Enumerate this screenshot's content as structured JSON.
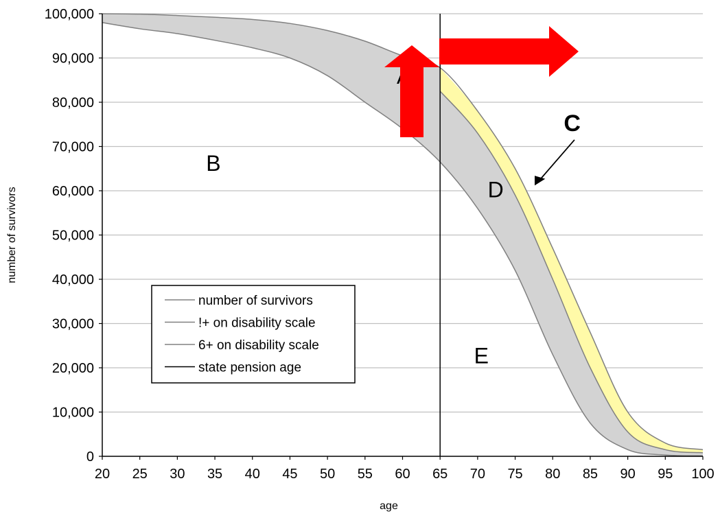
{
  "chart_data": {
    "type": "area",
    "xlabel": "age",
    "ylabel": "number of survivors",
    "xlim": [
      20,
      100
    ],
    "ylim": [
      0,
      100000
    ],
    "x_ticks": [
      20,
      25,
      30,
      35,
      40,
      45,
      50,
      55,
      60,
      65,
      70,
      75,
      80,
      85,
      90,
      95,
      100
    ],
    "y_ticks": [
      0,
      10000,
      20000,
      30000,
      40000,
      50000,
      60000,
      70000,
      80000,
      90000,
      100000
    ],
    "y_tick_labels": [
      "0",
      "10,000",
      "20,000",
      "30,000",
      "40,000",
      "50,000",
      "60,000",
      "70,000",
      "80,000",
      "90,000",
      "100,000"
    ],
    "x_tick_labels": [
      "20",
      "25",
      "30",
      "35",
      "40",
      "45",
      "50",
      "55",
      "60",
      "65",
      "70",
      "75",
      "80",
      "85",
      "90",
      "95",
      "100"
    ],
    "grid": "horizontal",
    "x": [
      20,
      25,
      30,
      35,
      40,
      45,
      50,
      55,
      60,
      65,
      70,
      75,
      80,
      85,
      90,
      95,
      100
    ],
    "series": [
      {
        "name": "number of survivors",
        "color": "#808080",
        "values": [
          100000,
          99900,
          99600,
          99200,
          98700,
          97800,
          96200,
          93800,
          90500,
          87800,
          78000,
          65000,
          47000,
          28000,
          10000,
          3000,
          1500
        ]
      },
      {
        "name": "!+ on disability scale",
        "color": "#808080",
        "values": [
          null,
          null,
          null,
          null,
          null,
          null,
          null,
          null,
          null,
          82500,
          73000,
          59000,
          40000,
          20000,
          5500,
          1500,
          800
        ]
      },
      {
        "name": "6+ on disability scale",
        "color": "#808080",
        "values": [
          98000,
          96600,
          95500,
          94000,
          92300,
          90000,
          86000,
          80000,
          74000,
          66500,
          56000,
          42000,
          23000,
          7500,
          1500,
          300,
          100
        ]
      }
    ],
    "reference_lines": [
      {
        "name": "state pension age",
        "axis": "x",
        "value": 65,
        "color": "#000000"
      }
    ],
    "area_colors": {
      "upper_band": "#fffaa8",
      "lower_band": "#d3d3d3"
    },
    "legend": {
      "position": "lower-left",
      "entries": [
        "number of survivors",
        "!+ on disability scale",
        "6+ on disability scale",
        "state pension age"
      ]
    },
    "annotations": [
      "A",
      "B",
      "C",
      "D",
      "E"
    ],
    "arrow_color": "#ff0000"
  }
}
